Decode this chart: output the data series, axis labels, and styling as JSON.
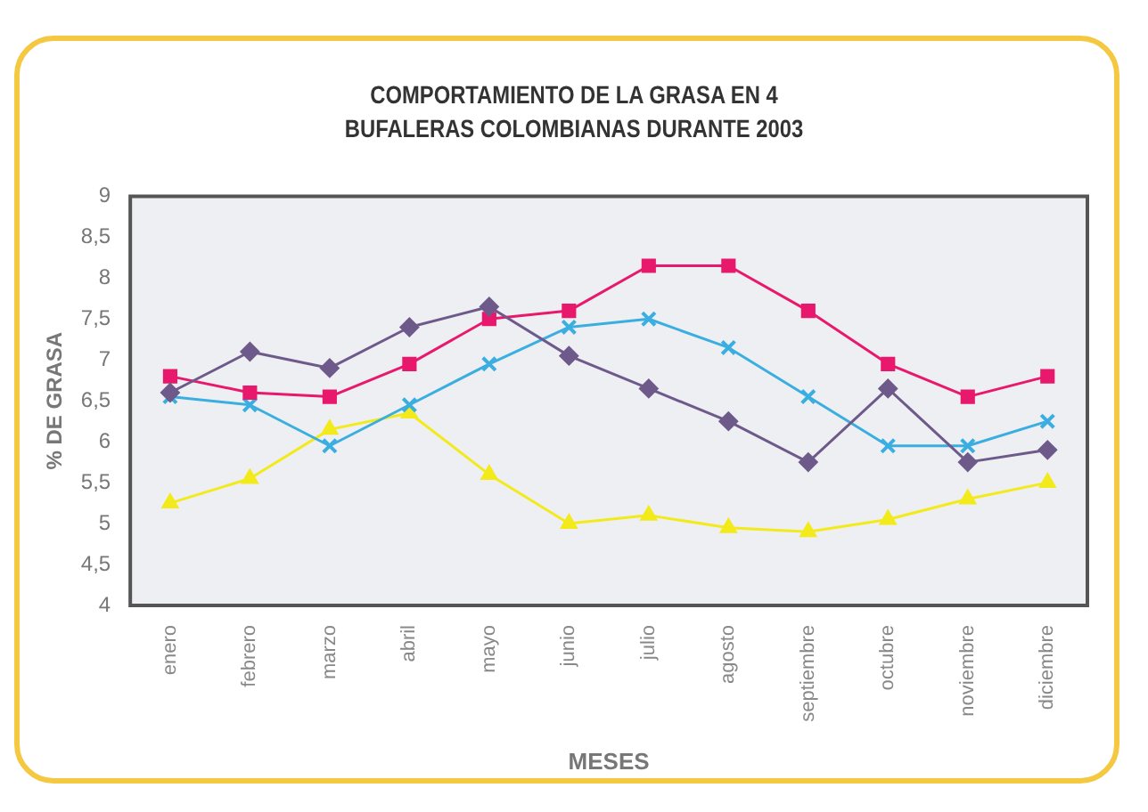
{
  "chart_data": {
    "type": "line",
    "title": "COMPORTAMIENTO DE LA GRASA EN 4\nBUFALERAS COLOMBIANAS DURANTE 2003",
    "xlabel": "MESES",
    "ylabel": "% DE GRASA",
    "categories": [
      "enero",
      "febrero",
      "marzo",
      "abril",
      "mayo",
      "junio",
      "julio",
      "agosto",
      "septiembre",
      "octubre",
      "noviembre",
      "diciembre"
    ],
    "series": [
      {
        "color": "#6e5a8a",
        "marker": "diamond",
        "values": [
          6.6,
          7.1,
          6.9,
          7.4,
          7.65,
          7.05,
          6.65,
          6.25,
          5.75,
          6.65,
          5.75,
          5.9
        ]
      },
      {
        "color": "#e8186c",
        "marker": "square",
        "values": [
          6.8,
          6.6,
          6.55,
          6.95,
          7.5,
          7.6,
          8.15,
          8.15,
          7.6,
          6.95,
          6.55,
          6.8
        ]
      },
      {
        "color": "#3aaee0",
        "marker": "cross",
        "values": [
          6.55,
          6.45,
          5.95,
          6.45,
          6.95,
          7.4,
          7.5,
          7.15,
          6.55,
          5.95,
          5.95,
          6.25
        ]
      },
      {
        "color": "#f2ea1a",
        "marker": "triangle",
        "values": [
          5.25,
          5.55,
          6.15,
          6.35,
          5.6,
          5.0,
          5.1,
          4.95,
          4.9,
          5.05,
          5.3,
          5.5
        ]
      }
    ],
    "ylim": [
      4,
      9
    ],
    "yticks": [
      4,
      {
        "value": 4.5,
        "label": "4,5"
      },
      5,
      {
        "value": 5.5,
        "label": "5,5"
      },
      6,
      {
        "value": 6.5,
        "label": "6,5"
      },
      7,
      {
        "value": 7.5,
        "label": "7,5"
      },
      8,
      {
        "value": 8.5,
        "label": "8,5"
      },
      9
    ],
    "grid": false,
    "legend": false,
    "line_style": "solid"
  }
}
